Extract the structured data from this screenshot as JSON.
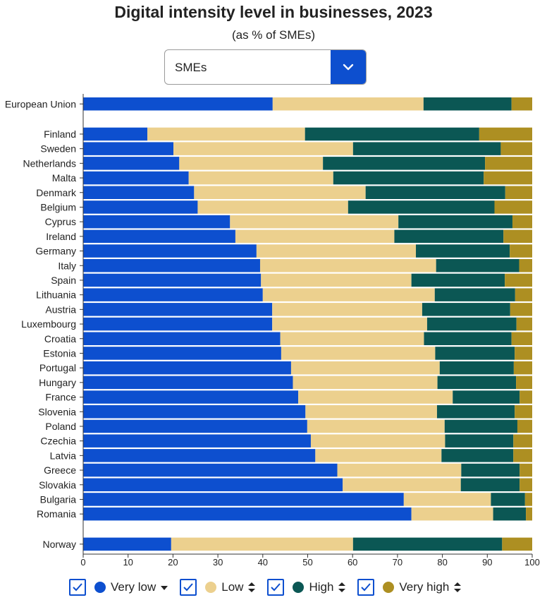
{
  "title": "Digital intensity level in businesses, 2023",
  "subtitle": "(as % of SMEs)",
  "dropdown": {
    "selected": "SMEs"
  },
  "legend": [
    {
      "label": "Very low",
      "color": "#0d4fcf",
      "sort": "desc"
    },
    {
      "label": "Low",
      "color": "#ecd08e",
      "sort": "both"
    },
    {
      "label": "High",
      "color": "#0b5754",
      "sort": "both"
    },
    {
      "label": "Very high",
      "color": "#ad8f22",
      "sort": "both"
    }
  ],
  "chart_data": {
    "type": "bar",
    "orientation": "horizontal",
    "stacked": true,
    "title": "Digital intensity level in businesses, 2023",
    "subtitle": "(as % of SMEs)",
    "xlim": [
      0,
      100
    ],
    "xticks": [
      0,
      10,
      20,
      30,
      40,
      50,
      60,
      70,
      80,
      90,
      100
    ],
    "legend_position": "bottom",
    "grid": false,
    "groups": [
      {
        "name": "eu",
        "categories": [
          "European Union"
        ]
      },
      {
        "name": "countries",
        "categories": [
          "Finland",
          "Sweden",
          "Netherlands",
          "Malta",
          "Denmark",
          "Belgium",
          "Cyprus",
          "Ireland",
          "Germany",
          "Italy",
          "Spain",
          "Lithuania",
          "Austria",
          "Luxembourg",
          "Croatia",
          "Estonia",
          "Portugal",
          "Hungary",
          "France",
          "Slovenia",
          "Poland",
          "Czechia",
          "Latvia",
          "Greece",
          "Slovakia",
          "Bulgaria",
          "Romania"
        ]
      },
      {
        "name": "other",
        "categories": [
          "Norway"
        ]
      }
    ],
    "categories": [
      "European Union",
      "Finland",
      "Sweden",
      "Netherlands",
      "Malta",
      "Denmark",
      "Belgium",
      "Cyprus",
      "Ireland",
      "Germany",
      "Italy",
      "Spain",
      "Lithuania",
      "Austria",
      "Luxembourg",
      "Croatia",
      "Estonia",
      "Portugal",
      "Hungary",
      "France",
      "Slovenia",
      "Poland",
      "Czechia",
      "Latvia",
      "Greece",
      "Slovakia",
      "Bulgaria",
      "Romania",
      "Norway"
    ],
    "series": [
      {
        "name": "Very low",
        "color": "#0d4fcf",
        "values": [
          42.2,
          14.3,
          20.1,
          21.4,
          23.5,
          24.7,
          25.5,
          32.7,
          33.9,
          38.6,
          39.4,
          39.6,
          40.0,
          42.1,
          42.1,
          43.9,
          44.1,
          46.3,
          46.7,
          47.9,
          49.5,
          49.9,
          50.7,
          51.7,
          56.6,
          57.8,
          71.4,
          73.1,
          19.6
        ]
      },
      {
        "name": "Low",
        "color": "#ecd08e",
        "values": [
          33.6,
          35.1,
          40.0,
          32.0,
          32.2,
          38.2,
          33.5,
          37.5,
          35.4,
          35.5,
          39.2,
          33.5,
          38.3,
          33.4,
          34.5,
          32.0,
          34.3,
          33.1,
          32.2,
          34.4,
          29.3,
          30.6,
          29.9,
          28.1,
          27.6,
          26.3,
          19.4,
          18.2,
          40.5
        ]
      },
      {
        "name": "High",
        "color": "#0b5754",
        "values": [
          19.6,
          38.8,
          32.9,
          36.1,
          33.5,
          31.1,
          32.6,
          25.4,
          24.3,
          20.9,
          18.5,
          20.8,
          17.9,
          19.6,
          19.9,
          19.5,
          17.7,
          16.5,
          17.5,
          14.9,
          17.3,
          16.2,
          15.2,
          16.0,
          13.0,
          13.1,
          7.6,
          7.3,
          33.2
        ]
      },
      {
        "name": "Very high",
        "color": "#ad8f22",
        "values": [
          4.6,
          11.8,
          7.0,
          10.5,
          10.8,
          6.0,
          8.4,
          4.4,
          6.4,
          5.0,
          2.9,
          6.1,
          3.8,
          4.9,
          3.5,
          4.6,
          3.9,
          4.1,
          3.6,
          2.8,
          3.9,
          3.3,
          4.2,
          4.2,
          2.8,
          2.8,
          1.6,
          1.4,
          6.7
        ]
      }
    ]
  }
}
